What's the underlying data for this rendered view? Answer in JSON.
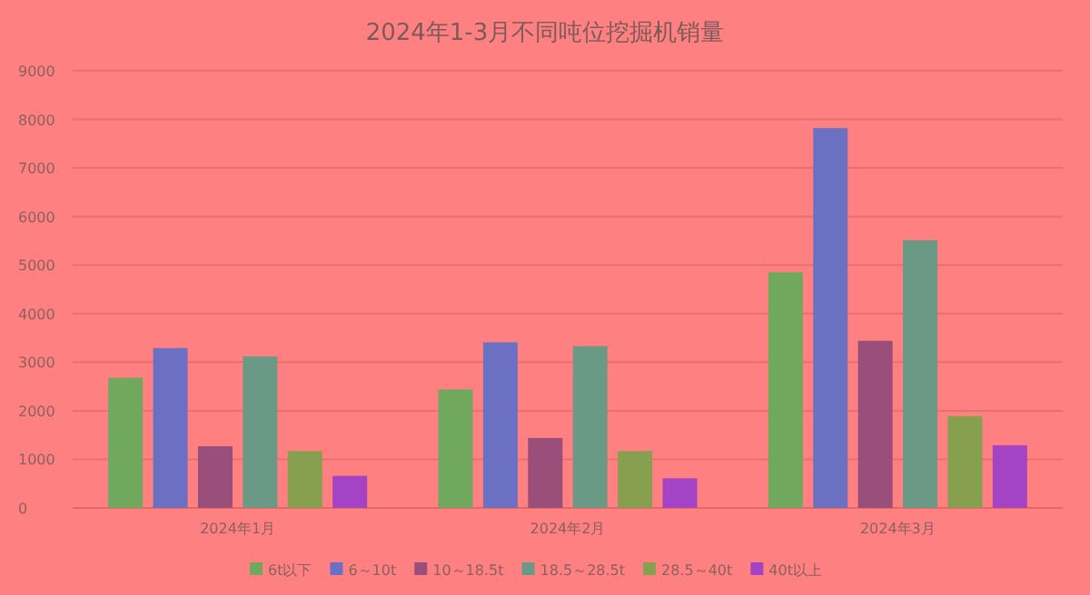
{
  "chart_data": {
    "type": "bar",
    "title": "2024年1-3月不同吨位挖掘机销量",
    "categories": [
      "2024年1月",
      "2024年2月",
      "2024年3月"
    ],
    "series": [
      {
        "name": "6t以下",
        "color": "#70a85e",
        "values": [
          2680,
          2440,
          4850
        ]
      },
      {
        "name": "6～10t",
        "color": "#6c70c2",
        "values": [
          3290,
          3410,
          7820
        ]
      },
      {
        "name": "10～18.5t",
        "color": "#9a4e7a",
        "values": [
          1270,
          1440,
          3440
        ]
      },
      {
        "name": "18.5～28.5t",
        "color": "#6a9a86",
        "values": [
          3120,
          3330,
          5510
        ]
      },
      {
        "name": "28.5～40t",
        "color": "#86a050",
        "values": [
          1170,
          1170,
          1890
        ]
      },
      {
        "name": "40t以上",
        "color": "#a444c4",
        "values": [
          660,
          610,
          1290
        ]
      }
    ],
    "ylim": [
      0,
      9000
    ],
    "yticks": [
      0,
      1000,
      2000,
      3000,
      4000,
      5000,
      6000,
      7000,
      8000,
      9000
    ],
    "grid": "y",
    "legend": "bottom"
  }
}
